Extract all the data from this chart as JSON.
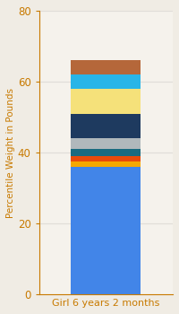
{
  "category": "Girl 6 years 2 months",
  "ylabel": "Percentile Weight in Pounds",
  "ylim": [
    0,
    80
  ],
  "yticks": [
    0,
    20,
    40,
    60,
    80
  ],
  "segments": [
    {
      "value": 36.0,
      "color": "#4285e8"
    },
    {
      "value": 1.5,
      "color": "#f5a800"
    },
    {
      "value": 1.5,
      "color": "#e84a0a"
    },
    {
      "value": 2.0,
      "color": "#1a6b80"
    },
    {
      "value": 3.0,
      "color": "#b0b8bc"
    },
    {
      "value": 7.0,
      "color": "#1e3a5f"
    },
    {
      "value": 7.0,
      "color": "#f5e17a"
    },
    {
      "value": 4.0,
      "color": "#29b5e8"
    },
    {
      "value": 4.0,
      "color": "#b5673a"
    }
  ],
  "background_color": "#f0ece4",
  "plot_bg_color": "#f5f2ec",
  "bar_width": 0.52,
  "ylabel_color": "#c87a00",
  "tick_color": "#c87a00",
  "grid_color": "#e0ddd8",
  "axis_color": "#c87a00",
  "xlabel_fontsize": 8.0,
  "ylabel_fontsize": 7.5,
  "tick_fontsize": 8.5
}
